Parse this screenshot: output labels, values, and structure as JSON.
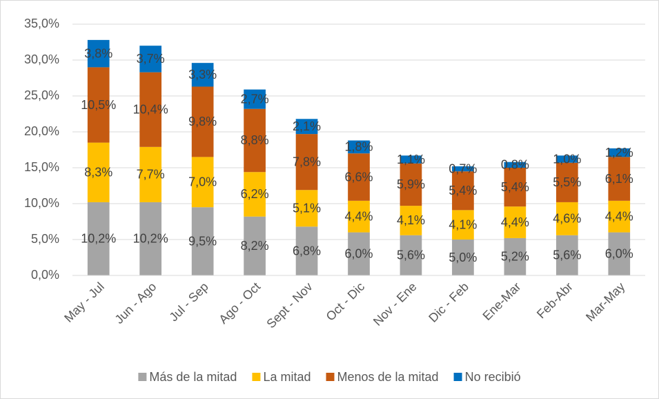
{
  "chart_data": {
    "type": "stacked_bar",
    "categories": [
      "May - Jul",
      "Jun - Ago",
      "Jul - Sep",
      "Ago - Oct",
      "Sept - Nov",
      "Oct - Dic",
      "Nov - Ene",
      "Dic - Feb",
      "Ene-Mar",
      "Feb-Abr",
      "Mar-May"
    ],
    "series": [
      {
        "name": "Más de la mitad",
        "color": "#a5a5a5",
        "values": [
          10.2,
          10.2,
          9.5,
          8.2,
          6.8,
          6.0,
          5.6,
          5.0,
          5.2,
          5.6,
          6.0
        ],
        "value_labels": [
          "10,2%",
          "10,2%",
          "9,5%",
          "8,2%",
          "6,8%",
          "6,0%",
          "5,6%",
          "5,0%",
          "5,2%",
          "5,6%",
          "6,0%"
        ]
      },
      {
        "name": "La mitad",
        "color": "#ffc000",
        "values": [
          8.3,
          7.7,
          7.0,
          6.2,
          5.1,
          4.4,
          4.1,
          4.1,
          4.4,
          4.6,
          4.4
        ],
        "value_labels": [
          "8,3%",
          "7,7%",
          "7,0%",
          "6,2%",
          "5,1%",
          "4,4%",
          "4,1%",
          "4,1%",
          "4,4%",
          "4,6%",
          "4,4%"
        ]
      },
      {
        "name": "Menos de la mitad",
        "color": "#c55a11",
        "values": [
          10.5,
          10.4,
          9.8,
          8.8,
          7.8,
          6.6,
          5.9,
          5.4,
          5.4,
          5.5,
          6.1
        ],
        "value_labels": [
          "10,5%",
          "10,4%",
          "9,8%",
          "8,8%",
          "7,8%",
          "6,6%",
          "5,9%",
          "5,4%",
          "5,4%",
          "5,5%",
          "6,1%"
        ]
      },
      {
        "name": "No recibió",
        "color": "#0070c0",
        "values": [
          3.8,
          3.7,
          3.3,
          2.7,
          2.1,
          1.8,
          1.1,
          0.7,
          0.8,
          1.0,
          1.2
        ],
        "value_labels": [
          "3,8%",
          "3,7%",
          "3,3%",
          "2,7%",
          "2,1%",
          "1,8%",
          "1,1%",
          "0,7%",
          "0,8%",
          "1,0%",
          "1,2%"
        ]
      }
    ],
    "ylim": [
      0,
      35
    ],
    "yticks": [
      {
        "value": 0,
        "label": "0,0%"
      },
      {
        "value": 5,
        "label": "5,0%"
      },
      {
        "value": 10,
        "label": "10,0%"
      },
      {
        "value": 15,
        "label": "15,0%"
      },
      {
        "value": 20,
        "label": "20,0%"
      },
      {
        "value": 25,
        "label": "25,0%"
      },
      {
        "value": 30,
        "label": "30,0%"
      },
      {
        "value": 35,
        "label": "35,0%"
      }
    ],
    "grid": true,
    "legend": "bottom"
  }
}
